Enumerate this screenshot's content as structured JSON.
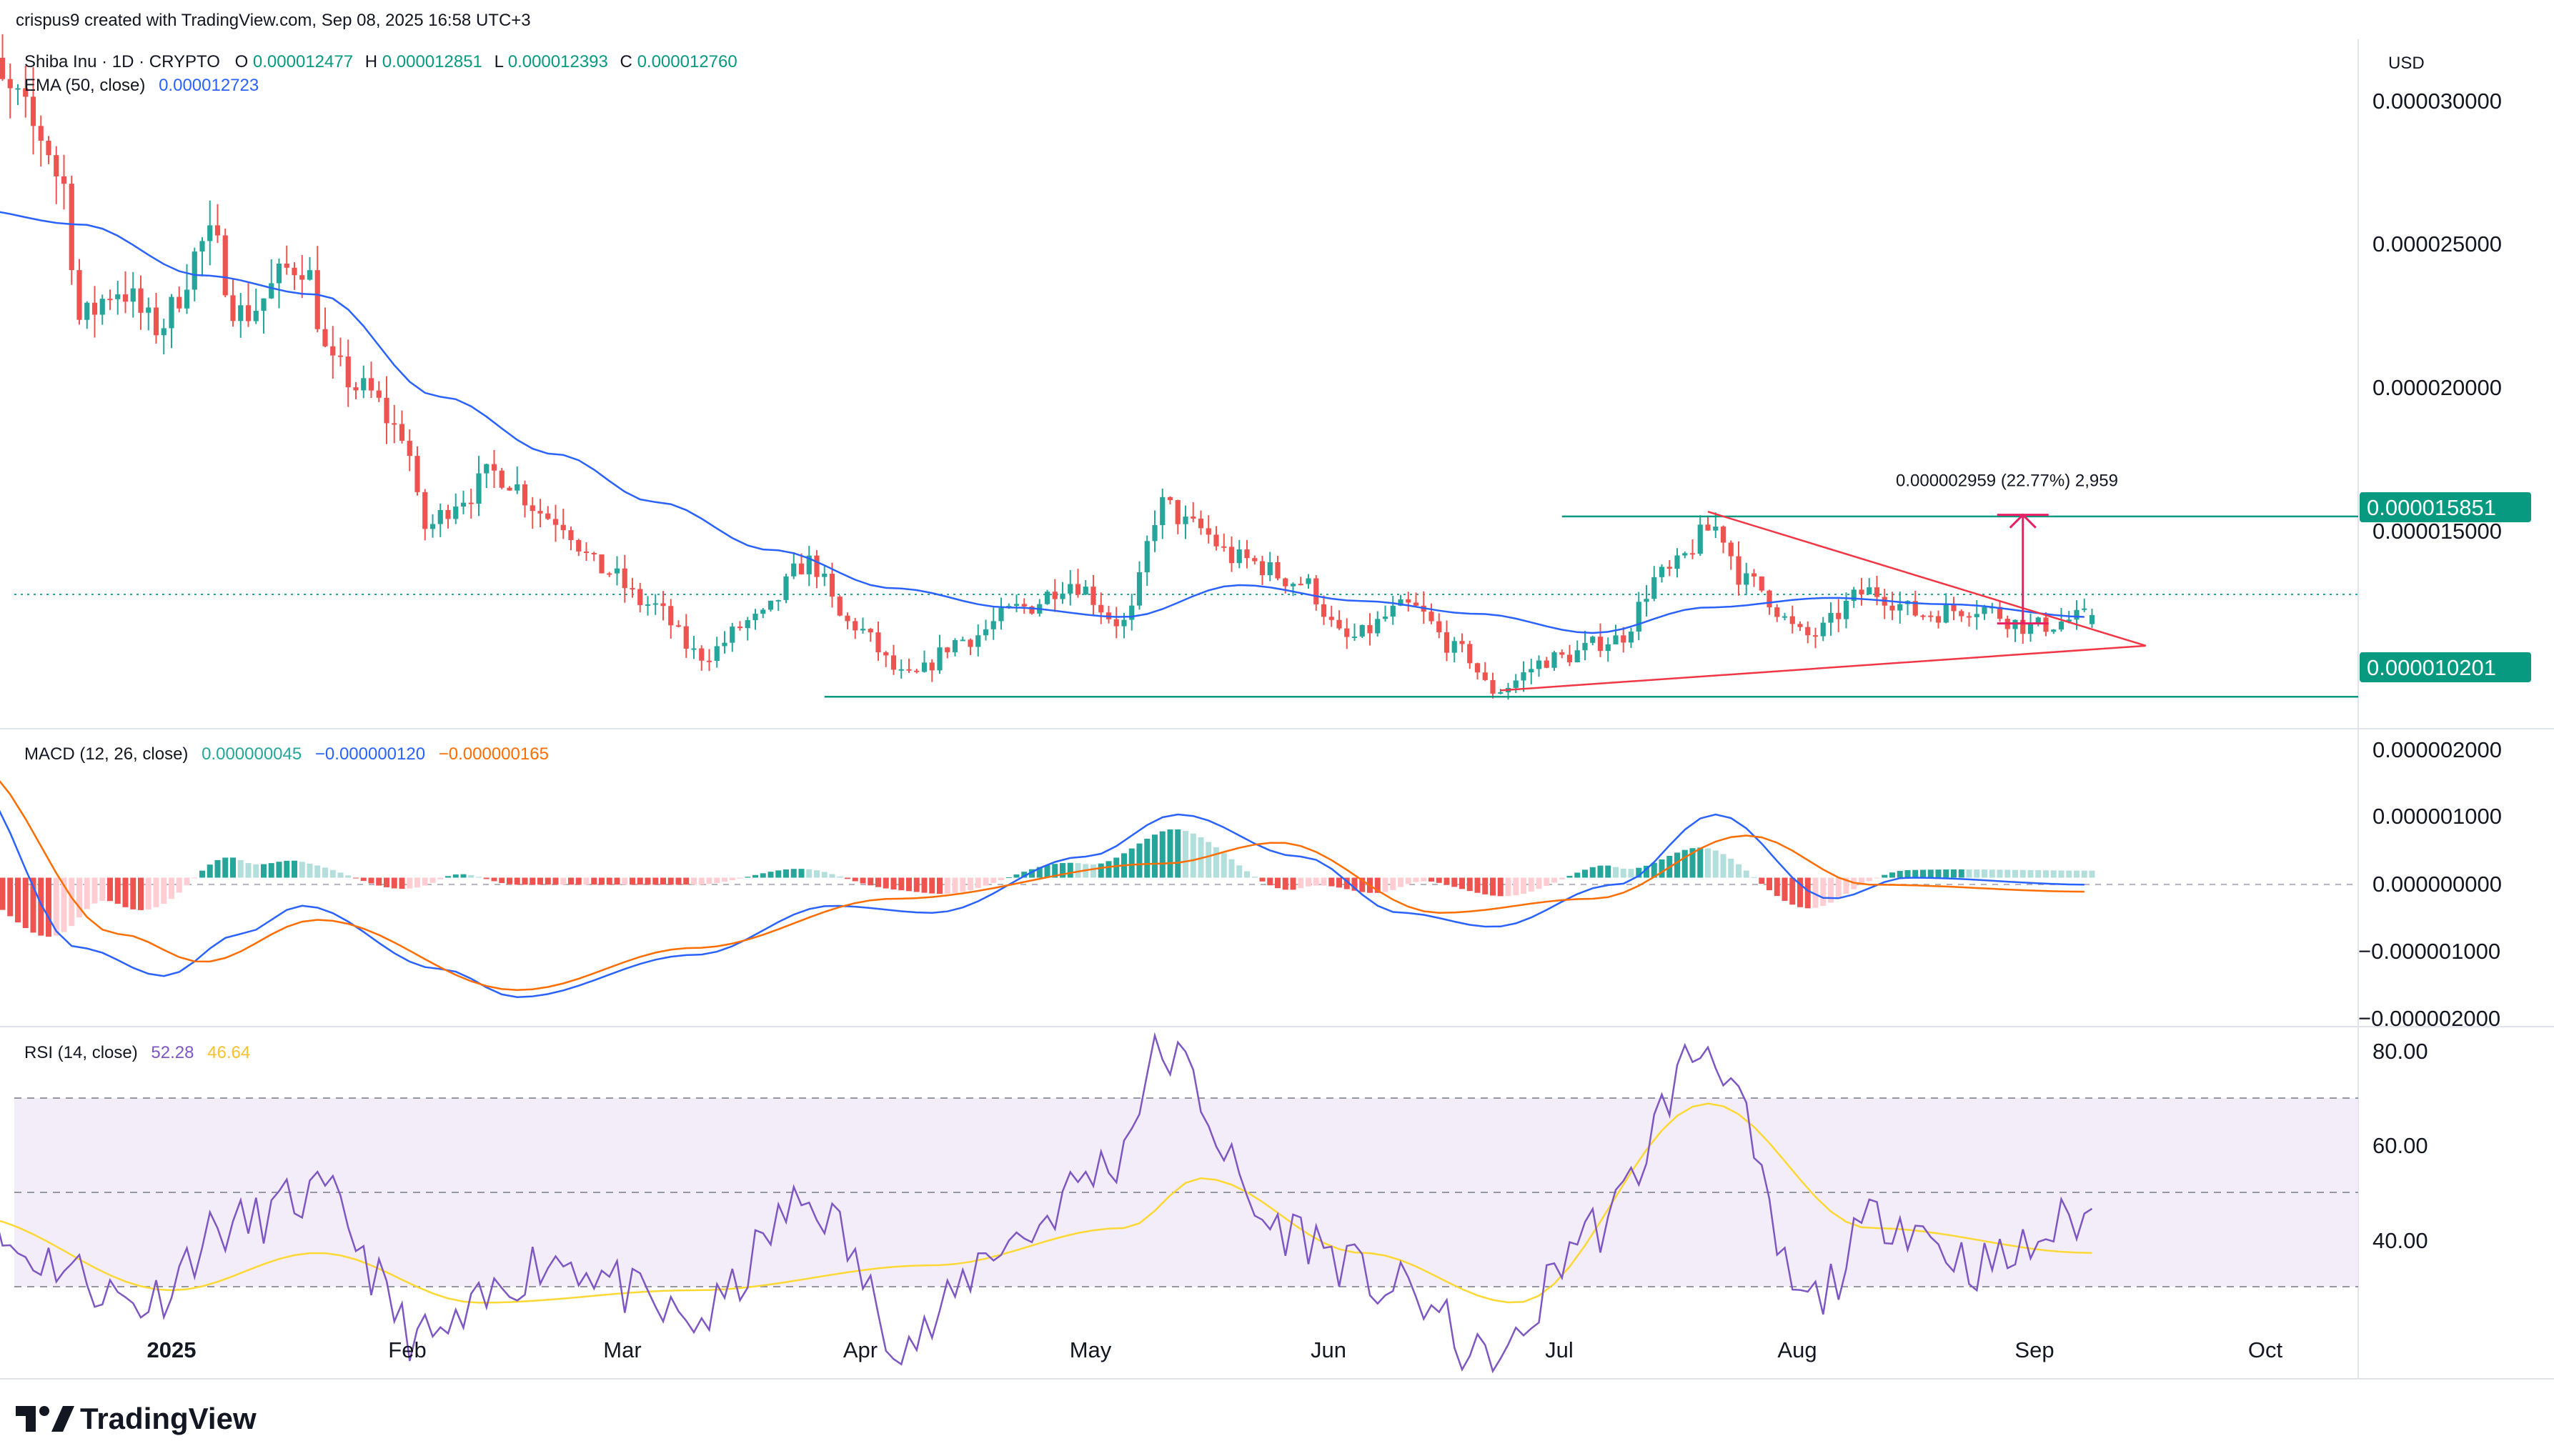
{
  "header": {
    "attribution": "crispus9 created with TradingView.com, Sep 08, 2025 16:58 UTC+3"
  },
  "symbol": {
    "title": "Shiba Inu · 1D · CRYPTO",
    "open_label": "O",
    "open": "0.000012477",
    "high_label": "H",
    "high": "0.000012851",
    "low_label": "L",
    "low": "0.000012393",
    "close_label": "C",
    "close": "0.000012760"
  },
  "ema": {
    "label": "EMA (50, close)",
    "value": "0.000012723"
  },
  "macd": {
    "label": "MACD (12, 26, close)",
    "histogram": "0.000000045",
    "macd_line": "−0.000000120",
    "signal": "−0.000000165"
  },
  "rsi": {
    "label": "RSI (14, close)",
    "value": "52.28",
    "ma": "46.64"
  },
  "currency": "USD",
  "price_axis": [
    "0.000030000",
    "0.000025000",
    "0.000020000",
    "0.000015000"
  ],
  "macd_axis": [
    "0.000002000",
    "0.000001000",
    "0.000000000",
    "−0.000001000",
    "−0.000002000"
  ],
  "rsi_axis": [
    "80.00",
    "60.00",
    "40.00"
  ],
  "time_axis": [
    "2025",
    "Feb",
    "Mar",
    "Apr",
    "May",
    "Jun",
    "Jul",
    "Aug",
    "Sep",
    "Oct"
  ],
  "levels": {
    "resistance": "0.000015851",
    "support": "0.000010201",
    "measure_label": "0.000002959 (22.77%) 2,959"
  },
  "brand": "TradingView",
  "colors": {
    "up": "#26a69a",
    "down": "#ef5350",
    "ema": "#2962ff",
    "macd": "#2962ff",
    "signal": "#ff6d00",
    "rsi": "#7e57c2",
    "rsi_ma": "#fdd835",
    "level": "#089981",
    "pattern": "#f23645",
    "arrow": "#e91e63"
  },
  "chart_data": {
    "type": "candlestick",
    "price_range": [
      9.2e-06,
      3.08e-05
    ],
    "price_candles": [
      {
        "date": "2024-12-08",
        "close": 3e-05
      },
      {
        "date": "2024-12-11",
        "close": 2.9e-05
      },
      {
        "date": "2024-12-15",
        "close": 2.78e-05
      },
      {
        "date": "2024-12-18",
        "close": 2.62e-05
      },
      {
        "date": "2024-12-20",
        "close": 2.2e-05
      },
      {
        "date": "2024-12-25",
        "close": 2.3e-05
      },
      {
        "date": "2024-12-30",
        "close": 2.18e-05
      },
      {
        "date": "2025-01-06",
        "close": 2.45e-05
      },
      {
        "date": "2025-01-10",
        "close": 2.22e-05
      },
      {
        "date": "2025-01-18",
        "close": 2.38e-05
      },
      {
        "date": "2025-01-22",
        "close": 2.05e-05
      },
      {
        "date": "2025-01-26",
        "close": 1.98e-05
      },
      {
        "date": "2025-01-31",
        "close": 1.85e-05
      },
      {
        "date": "2025-02-03",
        "close": 1.55e-05
      },
      {
        "date": "2025-02-08",
        "close": 1.65e-05
      },
      {
        "date": "2025-02-12",
        "close": 1.72e-05
      },
      {
        "date": "2025-02-20",
        "close": 1.58e-05
      },
      {
        "date": "2025-02-26",
        "close": 1.42e-05
      },
      {
        "date": "2025-03-04",
        "close": 1.31e-05
      },
      {
        "date": "2025-03-11",
        "close": 1.15e-05
      },
      {
        "date": "2025-03-18",
        "close": 1.26e-05
      },
      {
        "date": "2025-03-25",
        "close": 1.44e-05
      },
      {
        "date": "2025-03-30",
        "close": 1.25e-05
      },
      {
        "date": "2025-04-07",
        "close": 1.08e-05
      },
      {
        "date": "2025-04-14",
        "close": 1.2e-05
      },
      {
        "date": "2025-04-22",
        "close": 1.3e-05
      },
      {
        "date": "2025-04-28",
        "close": 1.38e-05
      },
      {
        "date": "2025-05-05",
        "close": 1.25e-05
      },
      {
        "date": "2025-05-10",
        "close": 1.62e-05
      },
      {
        "date": "2025-05-14",
        "close": 1.55e-05
      },
      {
        "date": "2025-05-20",
        "close": 1.45e-05
      },
      {
        "date": "2025-05-28",
        "close": 1.38e-05
      },
      {
        "date": "2025-06-03",
        "close": 1.2e-05
      },
      {
        "date": "2025-06-11",
        "close": 1.3e-05
      },
      {
        "date": "2025-06-18",
        "close": 1.16e-05
      },
      {
        "date": "2025-06-22",
        "close": 1.04e-05
      },
      {
        "date": "2025-06-30",
        "close": 1.14e-05
      },
      {
        "date": "2025-07-08",
        "close": 1.2e-05
      },
      {
        "date": "2025-07-14",
        "close": 1.4e-05
      },
      {
        "date": "2025-07-21",
        "close": 1.55e-05
      },
      {
        "date": "2025-07-25",
        "close": 1.38e-05
      },
      {
        "date": "2025-08-02",
        "close": 1.21e-05
      },
      {
        "date": "2025-08-10",
        "close": 1.35e-05
      },
      {
        "date": "2025-08-17",
        "close": 1.28e-05
      },
      {
        "date": "2025-08-24",
        "close": 1.3e-05
      },
      {
        "date": "2025-08-31",
        "close": 1.24e-05
      },
      {
        "date": "2025-09-08",
        "close": 1.27e-05
      }
    ],
    "ema50": [
      {
        "date": "2024-12-05",
        "value": 2.55e-05
      },
      {
        "date": "2024-12-20",
        "value": 2.5e-05
      },
      {
        "date": "2025-01-05",
        "value": 2.34e-05
      },
      {
        "date": "2025-01-20",
        "value": 2.28e-05
      },
      {
        "date": "2025-02-05",
        "value": 1.96e-05
      },
      {
        "date": "2025-02-20",
        "value": 1.78e-05
      },
      {
        "date": "2025-03-05",
        "value": 1.63e-05
      },
      {
        "date": "2025-03-20",
        "value": 1.48e-05
      },
      {
        "date": "2025-04-05",
        "value": 1.36e-05
      },
      {
        "date": "2025-04-20",
        "value": 1.3e-05
      },
      {
        "date": "2025-05-05",
        "value": 1.27e-05
      },
      {
        "date": "2025-05-20",
        "value": 1.37e-05
      },
      {
        "date": "2025-06-05",
        "value": 1.32e-05
      },
      {
        "date": "2025-06-20",
        "value": 1.28e-05
      },
      {
        "date": "2025-07-05",
        "value": 1.22e-05
      },
      {
        "date": "2025-07-20",
        "value": 1.3e-05
      },
      {
        "date": "2025-08-05",
        "value": 1.33e-05
      },
      {
        "date": "2025-08-20",
        "value": 1.31e-05
      },
      {
        "date": "2025-09-08",
        "value": 1.27e-05
      }
    ],
    "macd_range": [
      -2.1e-06,
      2.1e-06
    ],
    "macd_line": [
      {
        "date": "2024-12-05",
        "value": 1.5e-06
      },
      {
        "date": "2024-12-20",
        "value": -1e-06
      },
      {
        "date": "2024-12-31",
        "value": -1.4e-06
      },
      {
        "date": "2025-01-10",
        "value": -8e-07
      },
      {
        "date": "2025-01-18",
        "value": -4e-07
      },
      {
        "date": "2025-02-05",
        "value": -1.3e-06
      },
      {
        "date": "2025-02-15",
        "value": -1.7e-06
      },
      {
        "date": "2025-03-10",
        "value": -1.1e-06
      },
      {
        "date": "2025-03-28",
        "value": -4e-07
      },
      {
        "date": "2025-04-10",
        "value": -5e-07
      },
      {
        "date": "2025-04-30",
        "value": 3e-07
      },
      {
        "date": "2025-05-12",
        "value": 9e-07
      },
      {
        "date": "2025-05-28",
        "value": 3e-07
      },
      {
        "date": "2025-06-10",
        "value": -5e-07
      },
      {
        "date": "2025-06-22",
        "value": -7e-07
      },
      {
        "date": "2025-07-08",
        "value": -1e-07
      },
      {
        "date": "2025-07-21",
        "value": 9e-07
      },
      {
        "date": "2025-08-05",
        "value": -3e-07
      },
      {
        "date": "2025-08-15",
        "value": 0.0
      },
      {
        "date": "2025-09-08",
        "value": -1e-07
      }
    ],
    "signal_line": [
      {
        "date": "2024-12-05",
        "value": 1.7e-06
      },
      {
        "date": "2024-12-25",
        "value": -8e-07
      },
      {
        "date": "2025-01-05",
        "value": -1.2e-06
      },
      {
        "date": "2025-01-20",
        "value": -6e-07
      },
      {
        "date": "2025-02-15",
        "value": -1.6e-06
      },
      {
        "date": "2025-03-10",
        "value": -1e-06
      },
      {
        "date": "2025-04-05",
        "value": -3e-07
      },
      {
        "date": "2025-05-10",
        "value": 2e-07
      },
      {
        "date": "2025-05-25",
        "value": 5e-07
      },
      {
        "date": "2025-06-15",
        "value": -5e-07
      },
      {
        "date": "2025-07-05",
        "value": -3e-07
      },
      {
        "date": "2025-07-25",
        "value": 6e-07
      },
      {
        "date": "2025-08-10",
        "value": -1e-07
      },
      {
        "date": "2025-09-08",
        "value": -2e-07
      }
    ],
    "rsi_range": [
      26,
      82
    ],
    "rsi_bands": [
      30,
      50,
      70
    ],
    "rsi_line": [
      {
        "date": "2024-12-05",
        "value": 51
      },
      {
        "date": "2024-12-15",
        "value": 45
      },
      {
        "date": "2024-12-28",
        "value": 38
      },
      {
        "date": "2025-01-08",
        "value": 50
      },
      {
        "date": "2025-01-20",
        "value": 55
      },
      {
        "date": "2025-02-03",
        "value": 32
      },
      {
        "date": "2025-02-20",
        "value": 45
      },
      {
        "date": "2025-03-10",
        "value": 35
      },
      {
        "date": "2025-03-25",
        "value": 54
      },
      {
        "date": "2025-04-07",
        "value": 32
      },
      {
        "date": "2025-04-20",
        "value": 48
      },
      {
        "date": "2025-05-03",
        "value": 60
      },
      {
        "date": "2025-05-10",
        "value": 78
      },
      {
        "date": "2025-05-25",
        "value": 50
      },
      {
        "date": "2025-06-10",
        "value": 40
      },
      {
        "date": "2025-06-22",
        "value": 28
      },
      {
        "date": "2025-07-05",
        "value": 50
      },
      {
        "date": "2025-07-20",
        "value": 79
      },
      {
        "date": "2025-08-02",
        "value": 38
      },
      {
        "date": "2025-08-12",
        "value": 52
      },
      {
        "date": "2025-08-25",
        "value": 44
      },
      {
        "date": "2025-09-08",
        "value": 52
      }
    ],
    "rsi_ma": [
      {
        "date": "2024-12-05",
        "value": 52
      },
      {
        "date": "2025-01-01",
        "value": 40
      },
      {
        "date": "2025-01-20",
        "value": 46
      },
      {
        "date": "2025-02-10",
        "value": 38
      },
      {
        "date": "2025-03-10",
        "value": 40
      },
      {
        "date": "2025-04-10",
        "value": 44
      },
      {
        "date": "2025-05-05",
        "value": 50
      },
      {
        "date": "2025-05-15",
        "value": 58
      },
      {
        "date": "2025-06-05",
        "value": 46
      },
      {
        "date": "2025-06-25",
        "value": 38
      },
      {
        "date": "2025-07-20",
        "value": 70
      },
      {
        "date": "2025-08-10",
        "value": 50
      },
      {
        "date": "2025-09-08",
        "value": 46
      }
    ],
    "triangle": {
      "upper_start": {
        "date": "2025-07-20",
        "value": 1.6e-05
      },
      "apex": {
        "date": "2025-09-15",
        "value": 1.18e-05
      },
      "lower_start": {
        "date": "2025-06-23",
        "value": 1.04e-05
      }
    },
    "measure": {
      "date": "2025-08-30",
      "from": 1.25e-05,
      "to": 1.59e-05
    }
  }
}
